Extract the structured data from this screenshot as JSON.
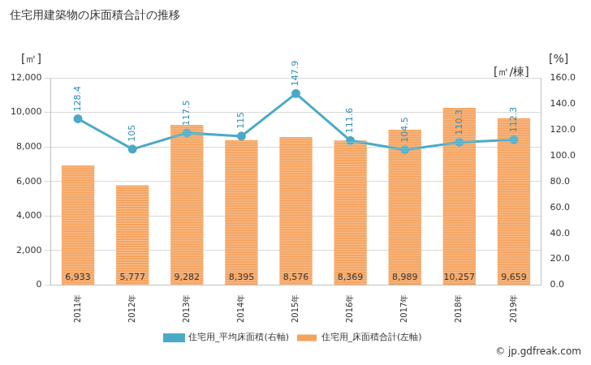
{
  "chart_data": {
    "type": "bar",
    "title": "住宅用建築物の床面積合計の推移",
    "y_label": "[㎡]",
    "y2_label": "[㎡/棟]",
    "annotations": [
      "[%]",
      "© jp.gdfreak.com"
    ],
    "categories": [
      "2011年",
      "2012年",
      "2013年",
      "2014年",
      "2015年",
      "2016年",
      "2017年",
      "2018年",
      "2019年"
    ],
    "series": [
      {
        "name": "住宅用_床面積合計(左軸)",
        "type": "bar",
        "color": "#f5a25d",
        "values": [
          6933,
          5777,
          9282,
          8395,
          8576,
          8369,
          8989,
          10257,
          9659
        ],
        "value_labels": [
          "6,933",
          "5,777",
          "9,282",
          "8,395",
          "8,576",
          "8,369",
          "8,989",
          "10,257",
          "9,659"
        ],
        "data_labels": true
      },
      {
        "name": "住宅用_平均床面積(右軸)",
        "type": "line",
        "axis": "y2",
        "color": "#4aaac6",
        "marker": "circle",
        "values": [
          128.4,
          105,
          117.5,
          115,
          147.9,
          111.6,
          104.5,
          110.3,
          112.3
        ],
        "data_labels": true
      }
    ],
    "ylim": [
      0,
      12000
    ],
    "yticks": [
      0,
      {
        "value": 2000,
        "label": "2,000"
      },
      {
        "value": 4000,
        "label": "4,000"
      },
      {
        "value": 6000,
        "label": "6,000"
      },
      {
        "value": 8000,
        "label": "8,000"
      },
      {
        "value": 10000,
        "label": "10,000"
      },
      {
        "value": 12000,
        "label": "12,000"
      }
    ],
    "y2lim": [
      0,
      160
    ],
    "y2ticks": [
      {
        "value": 0,
        "label": "0.0"
      },
      {
        "value": 20,
        "label": "20.0"
      },
      {
        "value": 40,
        "label": "40.0"
      },
      {
        "value": 60,
        "label": "60.0"
      },
      {
        "value": 80,
        "label": "80.0"
      },
      {
        "value": 100,
        "label": "100.0"
      },
      {
        "value": 120,
        "label": "120.0"
      },
      {
        "value": 140,
        "label": "140.0"
      },
      {
        "value": 160,
        "label": "160.0"
      }
    ],
    "grid": true,
    "legend": "bottom"
  }
}
